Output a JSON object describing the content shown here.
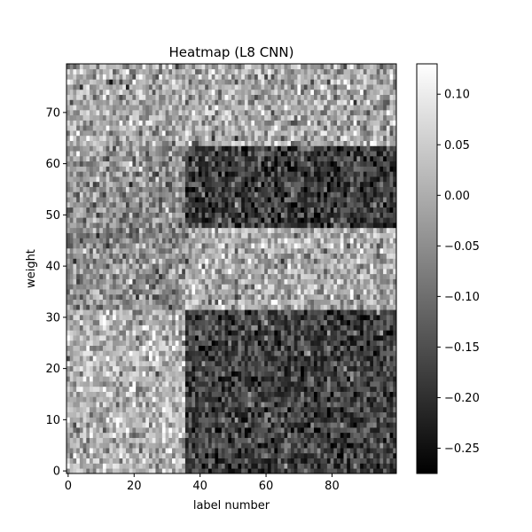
{
  "chart_data": {
    "type": "heatmap",
    "title": "Heatmap (L8 CNN)",
    "xlabel": "label number",
    "ylabel": "weight",
    "x_range": [
      0,
      99
    ],
    "y_range": [
      0,
      79
    ],
    "xticks": [
      0,
      20,
      40,
      60,
      80
    ],
    "yticks": [
      0,
      10,
      20,
      30,
      40,
      50,
      60,
      70
    ],
    "colormap": "gray",
    "colorbar": {
      "vmin": -0.275,
      "vmax": 0.13,
      "ticks": [
        0.1,
        0.05,
        0.0,
        -0.05,
        -0.1,
        -0.15,
        -0.2,
        -0.25
      ],
      "tick_labels": [
        "0.10",
        "0.05",
        "0.00",
        "−0.05",
        "−0.10",
        "−0.15",
        "−0.20",
        "−0.25"
      ]
    },
    "structure": {
      "seed": 20240518,
      "regions": [
        {
          "x_from": 0,
          "x_to": 99,
          "y_from": 0,
          "y_to": 79,
          "mean": -0.05,
          "noise": 0.06
        },
        {
          "x_from": 0,
          "x_to": 35,
          "y_from": 0,
          "y_to": 31,
          "mean": 0.01,
          "noise": 0.06
        },
        {
          "x_from": 36,
          "x_to": 99,
          "y_from": 0,
          "y_to": 31,
          "mean": -0.17,
          "noise": 0.055
        },
        {
          "x_from": 36,
          "x_to": 99,
          "y_from": 32,
          "y_to": 47,
          "mean": 0.0,
          "noise": 0.06
        },
        {
          "x_from": 36,
          "x_to": 99,
          "y_from": 48,
          "y_to": 63,
          "mean": -0.18,
          "noise": 0.055
        },
        {
          "x_from": 0,
          "x_to": 99,
          "y_from": 64,
          "y_to": 79,
          "mean": -0.01,
          "noise": 0.065
        }
      ]
    }
  }
}
